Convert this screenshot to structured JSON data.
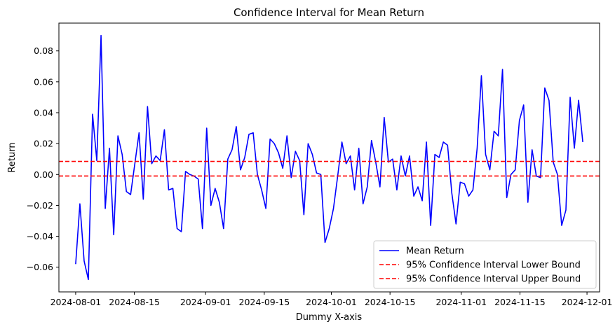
{
  "chart_data": {
    "type": "line",
    "title": "Confidence Interval for Mean Return",
    "xlabel": "Dummy X-axis",
    "ylabel": "Return",
    "x_start": "2024-08-01",
    "x_end": "2024-11-30",
    "xlim": [
      "2024-07-28",
      "2024-12-04"
    ],
    "ylim": [
      -0.076,
      0.098
    ],
    "x_ticks": [
      "2024-08-01",
      "2024-08-15",
      "2024-09-01",
      "2024-09-15",
      "2024-10-01",
      "2024-10-15",
      "2024-11-01",
      "2024-11-15",
      "2024-12-01"
    ],
    "y_ticks": [
      -0.06,
      -0.04,
      -0.02,
      0.0,
      0.02,
      0.04,
      0.06,
      0.08
    ],
    "y_tick_labels": [
      "−0.06",
      "−0.04",
      "−0.02",
      "0.00",
      "0.02",
      "0.04",
      "0.06",
      "0.08"
    ],
    "series": [
      {
        "name": "Mean Return",
        "color": "#0000ff",
        "style": "solid",
        "values": [
          -0.058,
          -0.019,
          -0.056,
          -0.068,
          0.039,
          0.009,
          0.09,
          -0.022,
          0.017,
          -0.039,
          0.025,
          0.013,
          -0.011,
          -0.013,
          0.007,
          0.027,
          -0.016,
          0.044,
          0.007,
          0.012,
          0.009,
          0.029,
          -0.01,
          -0.009,
          -0.035,
          -0.037,
          0.002,
          -0.0,
          -0.001,
          -0.003,
          -0.035,
          0.03,
          -0.02,
          -0.009,
          -0.018,
          -0.035,
          0.01,
          0.016,
          0.031,
          0.003,
          0.011,
          0.026,
          0.027,
          0.0,
          -0.01,
          -0.022,
          0.023,
          0.02,
          0.014,
          0.004,
          0.025,
          -0.002,
          0.015,
          0.009,
          -0.026,
          0.02,
          0.013,
          0.001,
          0.0,
          -0.044,
          -0.035,
          -0.022,
          -0.001,
          0.021,
          0.007,
          0.012,
          -0.01,
          0.017,
          -0.019,
          -0.008,
          0.022,
          0.008,
          -0.008,
          0.037,
          0.008,
          0.01,
          -0.01,
          0.012,
          -0.001,
          0.012,
          -0.014,
          -0.008,
          -0.017,
          0.021,
          -0.033,
          0.013,
          0.011,
          0.021,
          0.019,
          -0.012,
          -0.032,
          -0.005,
          -0.006,
          -0.014,
          -0.01,
          0.017,
          0.064,
          0.013,
          0.003,
          0.028,
          0.025,
          0.068,
          -0.015,
          0.0,
          0.003,
          0.035,
          0.045,
          -0.018,
          0.016,
          -0.001,
          -0.002,
          0.056,
          0.048,
          0.008,
          0.0,
          -0.033,
          -0.023,
          0.05,
          0.017,
          0.048,
          0.021
        ]
      },
      {
        "name": "95% Confidence Interval Lower Bound",
        "color": "#ff0000",
        "style": "dashed",
        "constant": -0.001
      },
      {
        "name": "95% Confidence Interval Upper Bound",
        "color": "#ff0000",
        "style": "dashed",
        "constant": 0.0085
      }
    ],
    "legend_position": "lower-right",
    "grid": false
  }
}
